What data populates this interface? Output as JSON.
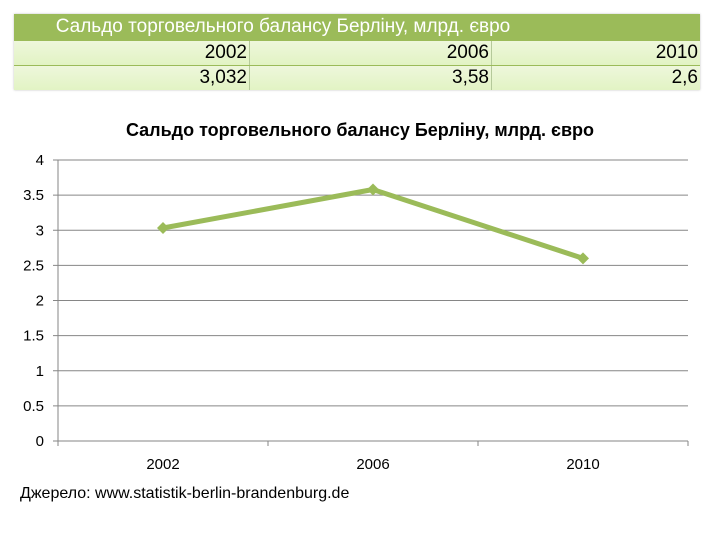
{
  "table": {
    "title": "Сальдо торговельного балансу Берліну, млрд. євро",
    "years": [
      "2002",
      "2006",
      "2010"
    ],
    "values": [
      "3,032",
      "3,58",
      "2,6"
    ],
    "header_color": "#9bbb59",
    "row_color": "#e6f4cc"
  },
  "chart_data": {
    "type": "line",
    "title": "Сальдо торговельного балансу Берліну, млрд. євро",
    "categories": [
      "2002",
      "2006",
      "2010"
    ],
    "series": [
      {
        "name": "Сальдо торговельного балансу Берліну, млрд. євро",
        "values": [
          3.032,
          3.58,
          2.6
        ],
        "color": "#9bbb59",
        "marker": "diamond"
      }
    ],
    "xlabel": "",
    "ylabel": "",
    "ylim": [
      0,
      4
    ],
    "yticks": [
      "0",
      "0.5",
      "1",
      "1.5",
      "2",
      "2.5",
      "3",
      "3.5",
      "4"
    ],
    "grid": true,
    "legend": "none"
  },
  "source": "Джерело: www.statistik-berlin-brandenburg.de"
}
